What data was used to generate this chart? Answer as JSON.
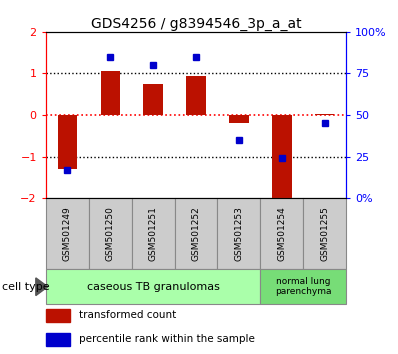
{
  "title": "GDS4256 / g8394546_3p_a_at",
  "samples": [
    "GSM501249",
    "GSM501250",
    "GSM501251",
    "GSM501252",
    "GSM501253",
    "GSM501254",
    "GSM501255"
  ],
  "transformed_count": [
    -1.3,
    1.05,
    0.75,
    0.93,
    -0.18,
    -2.05,
    0.02
  ],
  "percentile_rank": [
    17,
    85,
    80,
    85,
    35,
    24,
    45
  ],
  "ylim_left": [
    -2,
    2
  ],
  "ylim_right": [
    0,
    100
  ],
  "yticks_left": [
    -2,
    -1,
    0,
    1,
    2
  ],
  "yticks_right": [
    0,
    25,
    50,
    75,
    100
  ],
  "ytick_labels_right": [
    "0%",
    "25",
    "50",
    "75",
    "100%"
  ],
  "bar_color": "#bb1100",
  "dot_color": "#0000cc",
  "group1_label": "caseous TB granulomas",
  "group1_color": "#aaffaa",
  "group1_count": 5,
  "group2_label": "normal lung\nparenchyma",
  "group2_color": "#77dd77",
  "group2_count": 2,
  "legend_bar_label": "transformed count",
  "legend_dot_label": "percentile rank within the sample",
  "cell_type_label": "cell type",
  "bg_color": "#ffffff",
  "sample_box_color": "#cccccc",
  "arrow_color": "#555555"
}
